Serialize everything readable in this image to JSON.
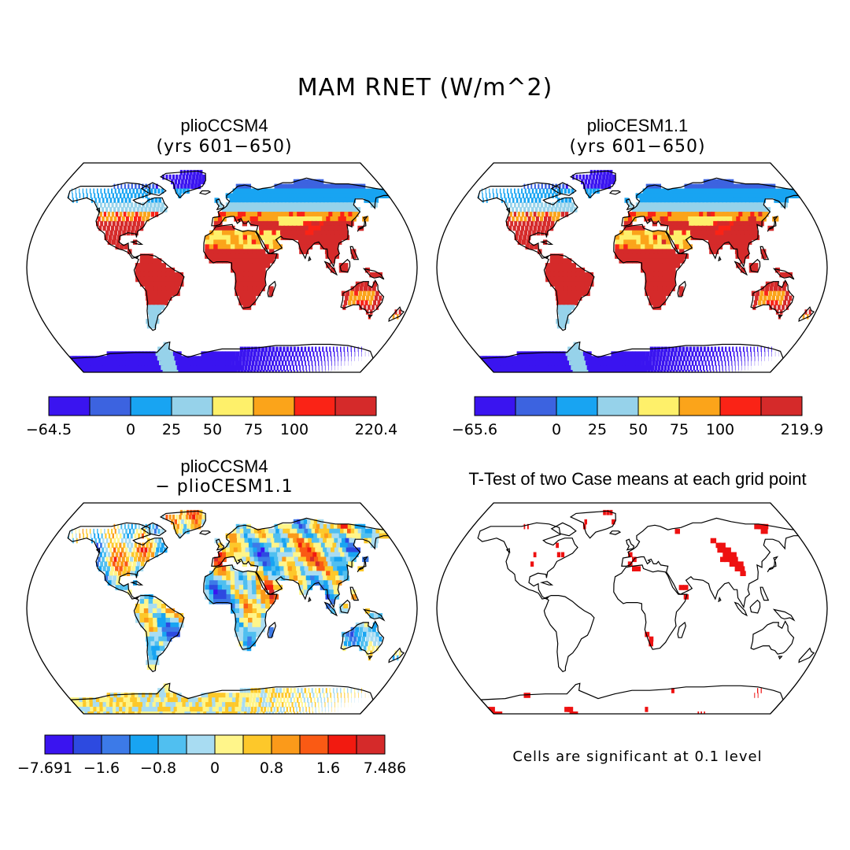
{
  "figure": {
    "title": "MAM RNET (W/m^2)"
  },
  "panels": [
    {
      "id": "cm4",
      "title": "plioCCSM4",
      "subtitle": "(yrs 601−650)",
      "colorbar": {
        "colors": [
          "#3a14f0",
          "#3c63e0",
          "#18a4f2",
          "#96d2ea",
          "#fef06a",
          "#fba41a",
          "#fa2316",
          "#d52a2a"
        ],
        "labels": [
          "−64.5",
          "0",
          "25",
          "50",
          "75",
          "100",
          "220.4"
        ],
        "label_boundaries": [
          0,
          2,
          3,
          4,
          5,
          6,
          8
        ]
      }
    },
    {
      "id": "cesm",
      "title": "plioCESM1.1",
      "subtitle": "(yrs 601−650)",
      "colorbar": {
        "colors": [
          "#3a14f0",
          "#3c63e0",
          "#18a4f2",
          "#96d2ea",
          "#fef06a",
          "#fba41a",
          "#fa2316",
          "#d52a2a"
        ],
        "labels": [
          "−65.6",
          "0",
          "25",
          "50",
          "75",
          "100",
          "219.9"
        ],
        "label_boundaries": [
          0,
          2,
          3,
          4,
          5,
          6,
          8
        ]
      }
    },
    {
      "id": "diff",
      "title": "plioCCSM4",
      "subtitle": "− plioCESM1.1",
      "colorbar": {
        "colors": [
          "#3a14f0",
          "#2d4ae0",
          "#3c7ae8",
          "#18a4f2",
          "#50bff0",
          "#a8dcf2",
          "#fff58a",
          "#fdc82a",
          "#fb9a1a",
          "#fa5a14",
          "#f21a10",
          "#d52a2a"
        ],
        "labels": [
          "−7.691",
          "−1.6",
          "−0.8",
          "0",
          "0.8",
          "1.6",
          "7.486"
        ],
        "label_boundaries": [
          0,
          2,
          4,
          6,
          8,
          10,
          12
        ]
      }
    },
    {
      "id": "ttest",
      "title": "T-Test of two Case means at each grid point",
      "note": "Cells are significant at 0.1 level",
      "significant_color": "#ee1111"
    }
  ]
}
